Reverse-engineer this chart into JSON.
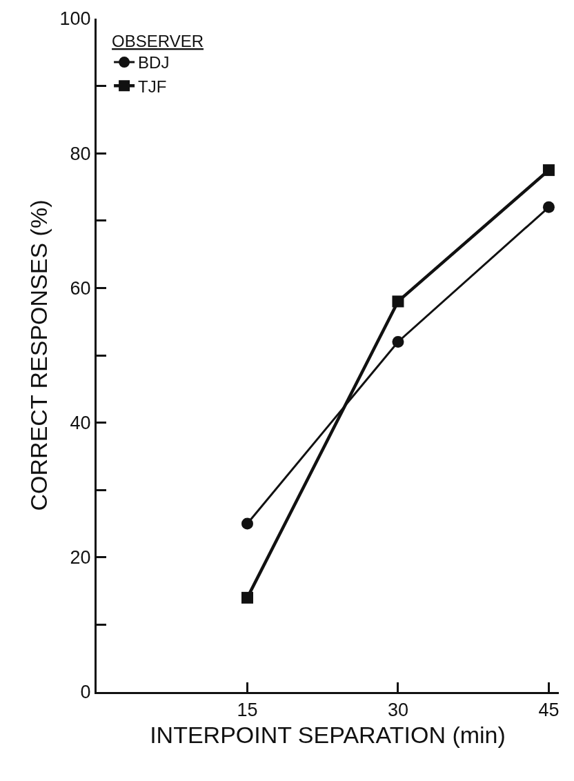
{
  "chart_data": {
    "type": "line",
    "xlabel": "INTERPOINT SEPARATION (min)",
    "ylabel": "CORRECT RESPONSES (%)",
    "legend_title": "OBSERVER",
    "x": [
      15,
      30,
      45
    ],
    "series": [
      {
        "name": "BDJ",
        "color": "#111111",
        "values": [
          25,
          52,
          72
        ],
        "marker": "circle"
      },
      {
        "name": "TJF",
        "color": "#111111",
        "values": [
          14,
          58,
          77.5
        ],
        "marker": "square"
      }
    ],
    "xlim": [
      0,
      46
    ],
    "xticks": [
      15,
      30,
      45
    ],
    "ylim": [
      0,
      100
    ],
    "yticks": [
      0,
      {
        "value": 10,
        "label": null
      },
      20,
      {
        "value": 30,
        "label": null
      },
      40,
      {
        "value": 50,
        "label": null
      },
      60,
      {
        "value": 70,
        "label": null
      },
      80,
      {
        "value": 90,
        "label": null
      },
      100
    ],
    "legend": "top left",
    "line_style": "solid"
  }
}
